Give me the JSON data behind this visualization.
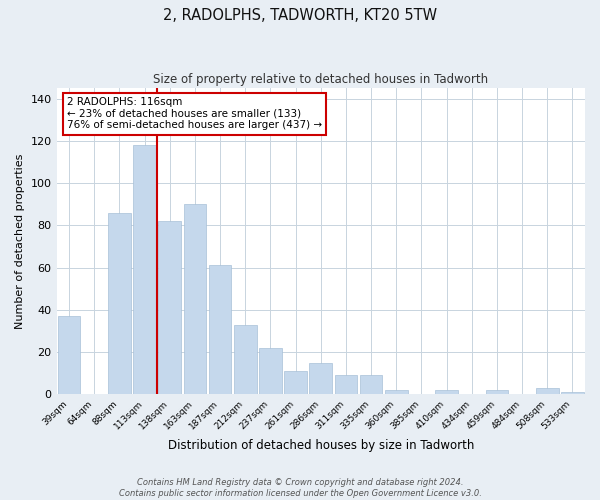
{
  "title": "2, RADOLPHS, TADWORTH, KT20 5TW",
  "subtitle": "Size of property relative to detached houses in Tadworth",
  "xlabel": "Distribution of detached houses by size in Tadworth",
  "ylabel": "Number of detached properties",
  "bar_labels": [
    "39sqm",
    "64sqm",
    "88sqm",
    "113sqm",
    "138sqm",
    "163sqm",
    "187sqm",
    "212sqm",
    "237sqm",
    "261sqm",
    "286sqm",
    "311sqm",
    "335sqm",
    "360sqm",
    "385sqm",
    "410sqm",
    "434sqm",
    "459sqm",
    "484sqm",
    "508sqm",
    "533sqm"
  ],
  "bar_values": [
    37,
    0,
    86,
    118,
    82,
    90,
    61,
    33,
    22,
    11,
    15,
    9,
    9,
    2,
    0,
    2,
    0,
    2,
    0,
    3,
    1
  ],
  "bar_color": "#c5d8ec",
  "bar_edge_color": "#a8c0d8",
  "property_line_color": "#cc0000",
  "annotation_text": "2 RADOLPHS: 116sqm\n← 23% of detached houses are smaller (133)\n76% of semi-detached houses are larger (437) →",
  "annotation_box_color": "#ffffff",
  "annotation_box_edge": "#cc0000",
  "ylim": [
    0,
    145
  ],
  "yticks": [
    0,
    20,
    40,
    60,
    80,
    100,
    120,
    140
  ],
  "footer_line1": "Contains HM Land Registry data © Crown copyright and database right 2024.",
  "footer_line2": "Contains public sector information licensed under the Open Government Licence v3.0.",
  "bg_color": "#e8eef4",
  "plot_bg_color": "#ffffff",
  "grid_color": "#c8d4de"
}
